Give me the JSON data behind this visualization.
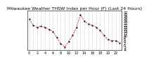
{
  "title": "Milwaukee Weather THSW Index per Hour (F) (Last 24 Hours)",
  "hours": [
    0,
    1,
    2,
    3,
    4,
    5,
    6,
    7,
    8,
    9,
    10,
    11,
    12,
    13,
    14,
    15,
    16,
    17,
    18,
    19,
    20,
    21,
    22,
    23
  ],
  "values": [
    26,
    20,
    18,
    19,
    18,
    16,
    14,
    8,
    2,
    -1,
    4,
    10,
    18,
    30,
    24,
    21,
    20,
    18,
    15,
    10,
    6,
    5,
    5,
    3
  ],
  "ylim": [
    -4,
    34
  ],
  "yticks": [
    -4,
    -2,
    0,
    2,
    4,
    6,
    8,
    10,
    12,
    14,
    16,
    18,
    20,
    22,
    24,
    26,
    28,
    30,
    32
  ],
  "line_color": "#dd0000",
  "marker_color": "#000000",
  "bg_color": "#ffffff",
  "grid_color": "#999999",
  "title_fontsize": 4.5,
  "tick_fontsize": 3.5
}
